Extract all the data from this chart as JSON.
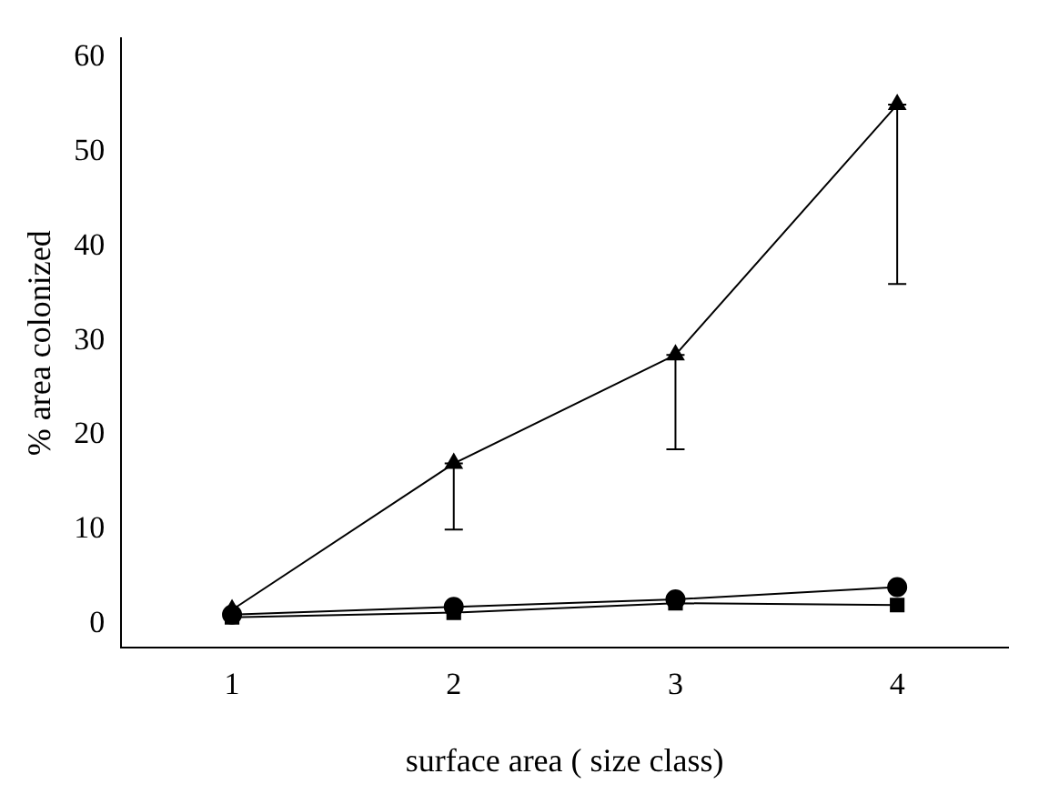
{
  "chart_data": {
    "type": "line",
    "xlabel": "surface area ( size class)",
    "ylabel": "% area colonized",
    "categories": [
      "1",
      "2",
      "3",
      "4"
    ],
    "series": [
      {
        "color": "#000000",
        "marker": "triangle",
        "values": [
          1.5,
          17,
          28.5,
          55
        ],
        "errors": [
          null,
          [
            10,
            17
          ],
          [
            18.5,
            28.5
          ],
          [
            36,
            55
          ]
        ]
      },
      {
        "color": "#000000",
        "marker": "circle",
        "values": [
          1,
          1.8,
          2.6,
          3.9
        ]
      },
      {
        "color": "#000000",
        "marker": "square",
        "values": [
          0.7,
          1.2,
          2.2,
          2.0
        ]
      }
    ],
    "ylim": [
      -2.5,
      62
    ],
    "yticks": [
      0,
      10,
      20,
      30,
      40,
      50,
      60
    ],
    "grid": false,
    "legend": false,
    "line_style": "solid"
  }
}
